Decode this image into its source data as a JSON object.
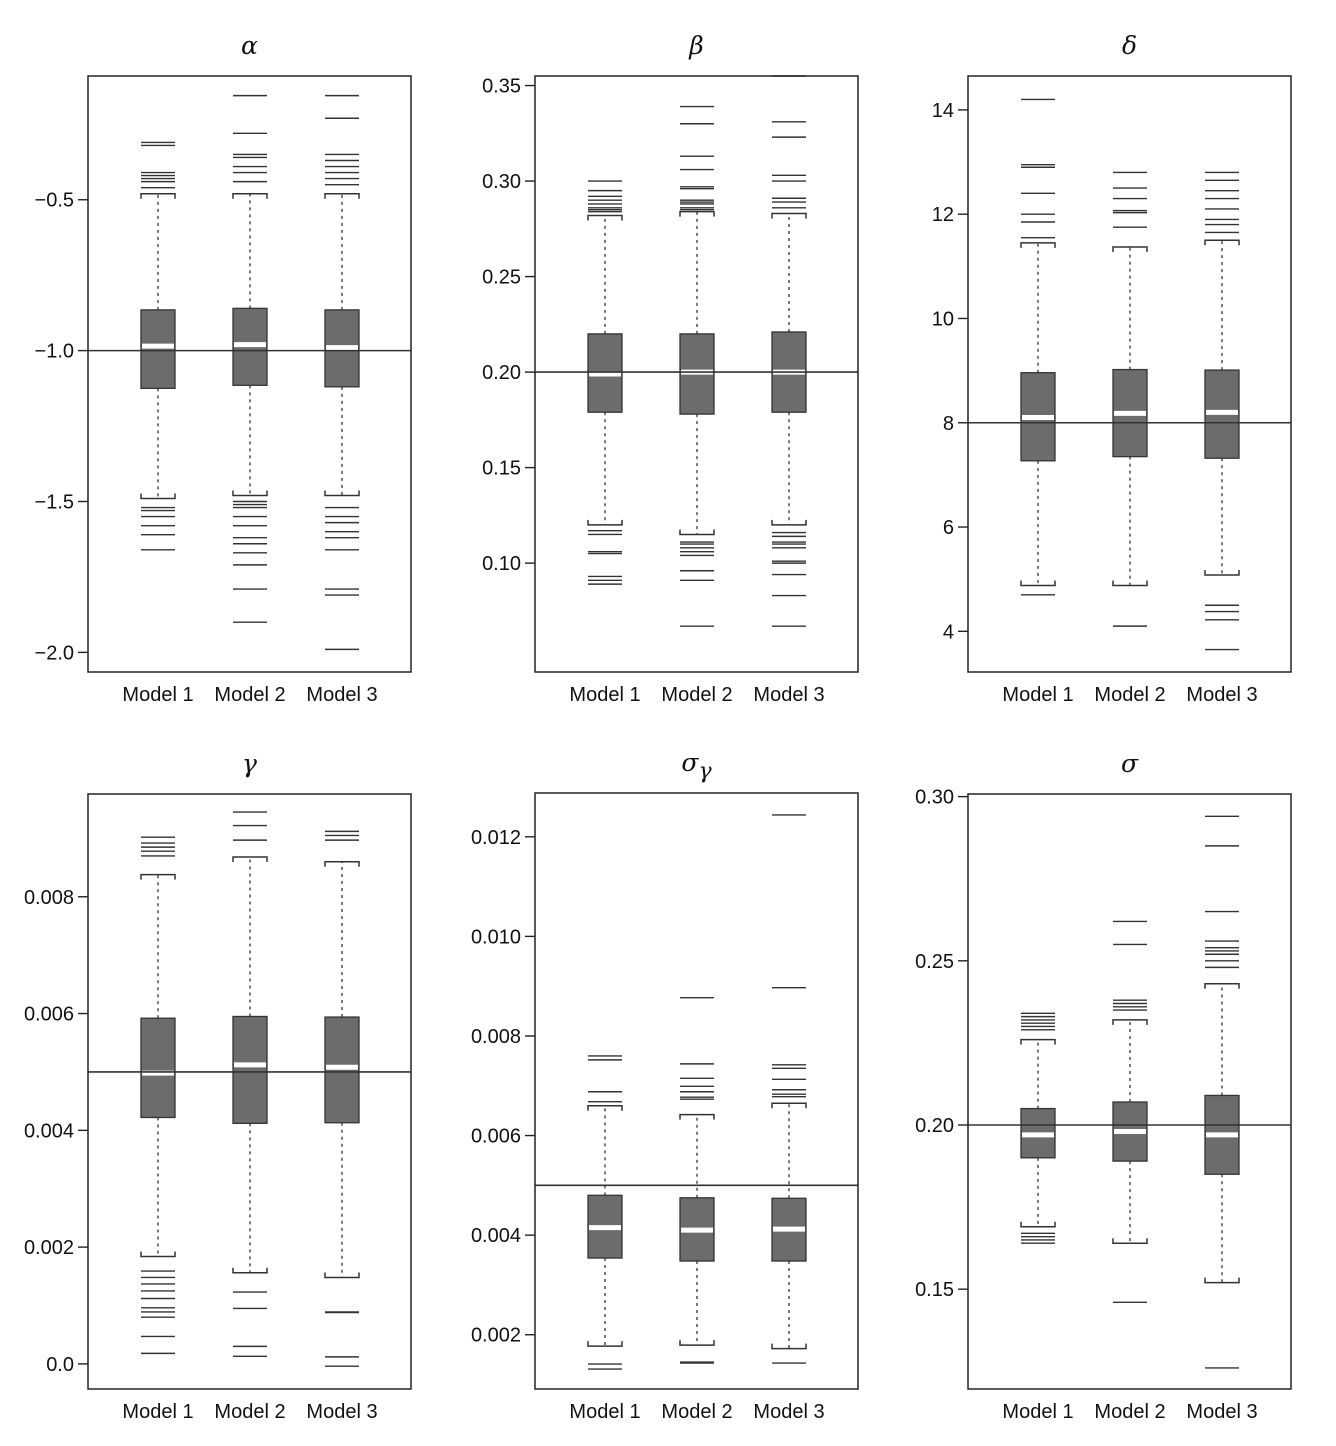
{
  "chart_data": [
    {
      "type": "box",
      "title": "α",
      "categories": [
        "Model 1",
        "Model 2",
        "Model 3"
      ],
      "ylim": [
        -2.065,
        -0.09
      ],
      "yticks": [
        -2.0,
        -1.5,
        -1.0,
        -0.5
      ],
      "ytick_labels": [
        "−2.0",
        "−1.5",
        "−1.0",
        "−0.5"
      ],
      "reference": -1.0,
      "boxes": [
        {
          "q1": -1.125,
          "median": -0.985,
          "q3": -0.865,
          "whisker_low": -1.49,
          "whisker_high": -0.48,
          "outliers": [
            -0.31,
            -0.32,
            -0.41,
            -0.42,
            -0.43,
            -0.44,
            -0.46,
            -1.52,
            -1.53,
            -1.55,
            -1.58,
            -1.61,
            -1.66
          ]
        },
        {
          "q1": -1.115,
          "median": -0.98,
          "q3": -0.86,
          "whisker_low": -1.48,
          "whisker_high": -0.48,
          "outliers": [
            -0.155,
            -0.28,
            -0.35,
            -0.36,
            -0.39,
            -0.41,
            -0.44,
            -1.5,
            -1.51,
            -1.52,
            -1.55,
            -1.58,
            -1.62,
            -1.64,
            -1.67,
            -1.71,
            -1.79,
            -1.9
          ]
        },
        {
          "q1": -1.12,
          "median": -0.99,
          "q3": -0.865,
          "whisker_low": -1.48,
          "whisker_high": -0.48,
          "outliers": [
            -0.155,
            -0.23,
            -0.35,
            -0.37,
            -0.39,
            -0.41,
            -0.43,
            -0.45,
            -1.52,
            -1.55,
            -1.57,
            -1.6,
            -1.62,
            -1.66,
            -1.79,
            -1.81,
            -1.99
          ]
        }
      ]
    },
    {
      "type": "box",
      "title": "β",
      "categories": [
        "Model 1",
        "Model 2",
        "Model 3"
      ],
      "ylim": [
        0.043,
        0.355
      ],
      "yticks": [
        0.1,
        0.15,
        0.2,
        0.25,
        0.3,
        0.35
      ],
      "ytick_labels": [
        "0.10",
        "0.15",
        "0.20",
        "0.25",
        "0.30",
        "0.35"
      ],
      "reference": 0.2,
      "boxes": [
        {
          "q1": 0.179,
          "median": 0.199,
          "q3": 0.22,
          "whisker_low": 0.12,
          "whisker_high": 0.282,
          "outliers": [
            0.3,
            0.295,
            0.292,
            0.29,
            0.288,
            0.286,
            0.285,
            0.284,
            0.117,
            0.115,
            0.106,
            0.105,
            0.093,
            0.091,
            0.089
          ]
        },
        {
          "q1": 0.178,
          "median": 0.2,
          "q3": 0.22,
          "whisker_low": 0.115,
          "whisker_high": 0.284,
          "outliers": [
            0.339,
            0.33,
            0.313,
            0.306,
            0.297,
            0.296,
            0.29,
            0.289,
            0.288,
            0.286,
            0.285,
            0.111,
            0.11,
            0.108,
            0.106,
            0.104,
            0.096,
            0.091,
            0.067
          ]
        },
        {
          "q1": 0.179,
          "median": 0.2,
          "q3": 0.221,
          "whisker_low": 0.12,
          "whisker_high": 0.283,
          "outliers": [
            0.355,
            0.331,
            0.323,
            0.303,
            0.3,
            0.291,
            0.289,
            0.286,
            0.116,
            0.114,
            0.111,
            0.11,
            0.108,
            0.101,
            0.1,
            0.094,
            0.083,
            0.067
          ]
        }
      ]
    },
    {
      "type": "box",
      "title": "δ",
      "categories": [
        "Model 1",
        "Model 2",
        "Model 3"
      ],
      "ylim": [
        3.22,
        14.65
      ],
      "yticks": [
        4,
        6,
        8,
        10,
        12,
        14
      ],
      "ytick_labels": [
        "4",
        "6",
        "8",
        "10",
        "12",
        "14"
      ],
      "reference": 8,
      "boxes": [
        {
          "q1": 7.27,
          "median": 8.1,
          "q3": 8.96,
          "whisker_low": 4.88,
          "whisker_high": 11.45,
          "outliers": [
            14.2,
            12.95,
            12.9,
            12.4,
            12.0,
            11.85,
            11.55,
            4.7
          ]
        },
        {
          "q1": 7.35,
          "median": 8.18,
          "q3": 9.02,
          "whisker_low": 4.88,
          "whisker_high": 11.37,
          "outliers": [
            12.8,
            12.5,
            12.3,
            12.07,
            12.03,
            11.75,
            4.1
          ]
        },
        {
          "q1": 7.32,
          "median": 8.2,
          "q3": 9.01,
          "whisker_low": 5.08,
          "whisker_high": 11.5,
          "outliers": [
            12.8,
            12.65,
            12.45,
            12.3,
            12.1,
            11.9,
            11.8,
            11.65,
            4.5,
            4.38,
            4.22,
            3.65
          ]
        }
      ]
    },
    {
      "type": "box",
      "title": "γ",
      "categories": [
        "Model 1",
        "Model 2",
        "Model 3"
      ],
      "ylim": [
        -0.00043,
        0.00976
      ],
      "yticks": [
        0.0,
        0.002,
        0.004,
        0.006,
        0.008
      ],
      "ytick_labels": [
        "0.0",
        "0.002",
        "0.004",
        "0.006",
        "0.008"
      ],
      "reference": 0.005,
      "boxes": [
        {
          "q1": 0.00422,
          "median": 0.00498,
          "q3": 0.00592,
          "whisker_low": 0.00184,
          "whisker_high": 0.00838,
          "outliers": [
            0.00902,
            0.00892,
            0.00885,
            0.00878,
            0.0087,
            0.00159,
            0.00148,
            0.00137,
            0.00125,
            0.00112,
            0.00096,
            0.00089,
            0.0008,
            0.00047,
            0.00018
          ]
        },
        {
          "q1": 0.00412,
          "median": 0.00512,
          "q3": 0.00595,
          "whisker_low": 0.00156,
          "whisker_high": 0.00868,
          "outliers": [
            0.00945,
            0.00922,
            0.00897,
            0.00123,
            0.00095,
            0.0003,
            0.00013
          ]
        },
        {
          "q1": 0.00413,
          "median": 0.00508,
          "q3": 0.00594,
          "whisker_low": 0.00148,
          "whisker_high": 0.0086,
          "outliers": [
            0.00912,
            0.00905,
            0.00897,
            0.00089,
            0.00088,
            0.00012,
            -4e-05
          ]
        }
      ]
    },
    {
      "type": "box",
      "title": "σγ",
      "title_main": "σ",
      "title_sub": "γ",
      "categories": [
        "Model 1",
        "Model 2",
        "Model 3"
      ],
      "ylim": [
        0.00091,
        0.01288
      ],
      "yticks": [
        0.002,
        0.004,
        0.006,
        0.008,
        0.01,
        0.012
      ],
      "ytick_labels": [
        "0.002",
        "0.004",
        "0.006",
        "0.008",
        "0.010",
        "0.012"
      ],
      "reference": 0.005,
      "boxes": [
        {
          "q1": 0.00354,
          "median": 0.00415,
          "q3": 0.0048,
          "whisker_low": 0.00177,
          "whisker_high": 0.0066,
          "outliers": [
            0.0076,
            0.00752,
            0.00688,
            0.00668,
            0.00141,
            0.00131
          ]
        },
        {
          "q1": 0.00348,
          "median": 0.0041,
          "q3": 0.00475,
          "whisker_low": 0.00179,
          "whisker_high": 0.00642,
          "outliers": [
            0.00877,
            0.00744,
            0.00715,
            0.00699,
            0.00688,
            0.00677,
            0.00673,
            0.00145,
            0.00143
          ]
        },
        {
          "q1": 0.00348,
          "median": 0.00412,
          "q3": 0.00474,
          "whisker_low": 0.00172,
          "whisker_high": 0.00665,
          "outliers": [
            0.01244,
            0.00897,
            0.00742,
            0.00735,
            0.00713,
            0.00692,
            0.00683,
            0.00678,
            0.00143
          ]
        }
      ]
    },
    {
      "type": "box",
      "title": "σ",
      "categories": [
        "Model 1",
        "Model 2",
        "Model 3"
      ],
      "ylim": [
        0.1196,
        0.3008
      ],
      "yticks": [
        0.15,
        0.2,
        0.25,
        0.3
      ],
      "ytick_labels": [
        "0.15",
        "0.20",
        "0.25",
        "0.30"
      ],
      "reference": 0.2,
      "boxes": [
        {
          "q1": 0.19,
          "median": 0.197,
          "q3": 0.205,
          "whisker_low": 0.169,
          "whisker_high": 0.226,
          "outliers": [
            0.234,
            0.233,
            0.232,
            0.231,
            0.23,
            0.229,
            0.167,
            0.166,
            0.165,
            0.164
          ]
        },
        {
          "q1": 0.189,
          "median": 0.198,
          "q3": 0.207,
          "whisker_low": 0.164,
          "whisker_high": 0.232,
          "outliers": [
            0.262,
            0.255,
            0.238,
            0.237,
            0.236,
            0.235,
            0.146
          ]
        },
        {
          "q1": 0.185,
          "median": 0.197,
          "q3": 0.209,
          "whisker_low": 0.152,
          "whisker_high": 0.243,
          "outliers": [
            0.294,
            0.285,
            0.265,
            0.256,
            0.254,
            0.253,
            0.252,
            0.25,
            0.248,
            0.126
          ]
        }
      ]
    }
  ]
}
